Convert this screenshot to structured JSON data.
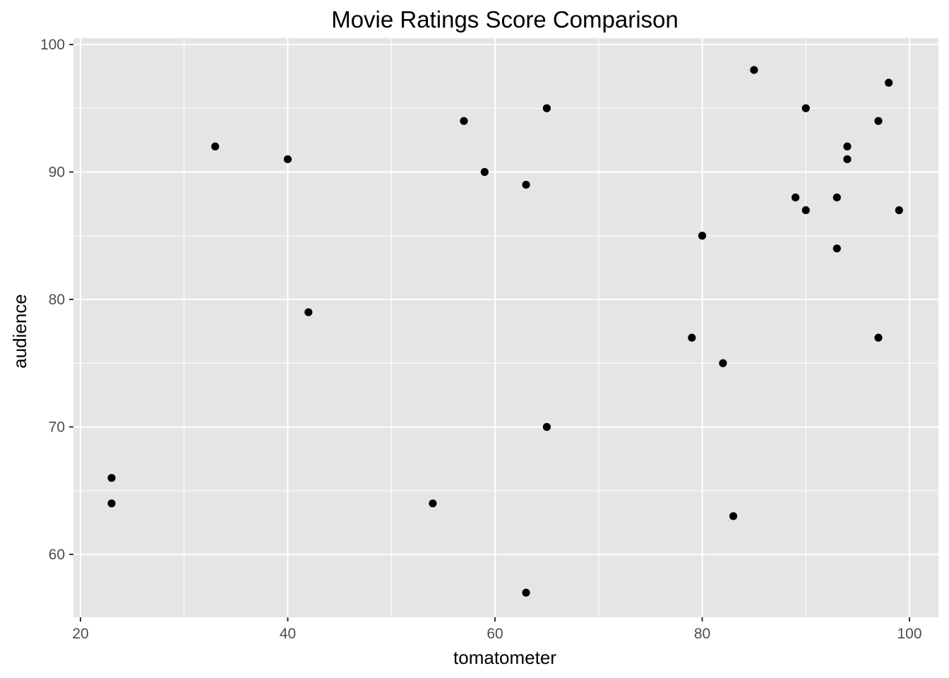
{
  "chart_data": {
    "type": "scatter",
    "title": "Movie Ratings Score Comparison",
    "xlabel": "tomatometer",
    "ylabel": "audience",
    "xlim": [
      19,
      101.5
    ],
    "ylim": [
      55,
      100
    ],
    "x_major_ticks": [
      20,
      40,
      60,
      80,
      100
    ],
    "x_minor_ticks": [
      30,
      50,
      70,
      90
    ],
    "y_major_ticks": [
      60,
      70,
      80,
      90,
      100
    ],
    "y_minor_ticks": [
      65,
      75,
      85,
      95
    ],
    "x_tick_labels": [
      "20",
      "40",
      "60",
      "80",
      "100"
    ],
    "y_tick_labels": [
      "60",
      "70",
      "80",
      "90",
      "100"
    ],
    "grid": true,
    "colors": {
      "panel": "#e5e5e5",
      "grid": "#ffffff",
      "point": "#000000",
      "tick": "#333333"
    },
    "points": [
      {
        "x": 23,
        "y": 66
      },
      {
        "x": 23,
        "y": 64
      },
      {
        "x": 33,
        "y": 92
      },
      {
        "x": 40,
        "y": 91
      },
      {
        "x": 42,
        "y": 79
      },
      {
        "x": 54,
        "y": 64
      },
      {
        "x": 57,
        "y": 94
      },
      {
        "x": 59,
        "y": 90
      },
      {
        "x": 63,
        "y": 89
      },
      {
        "x": 63,
        "y": 57
      },
      {
        "x": 65,
        "y": 95
      },
      {
        "x": 65,
        "y": 70
      },
      {
        "x": 79,
        "y": 77
      },
      {
        "x": 80,
        "y": 85
      },
      {
        "x": 82,
        "y": 75
      },
      {
        "x": 83,
        "y": 63
      },
      {
        "x": 85,
        "y": 98
      },
      {
        "x": 89,
        "y": 88
      },
      {
        "x": 90,
        "y": 95
      },
      {
        "x": 90,
        "y": 87
      },
      {
        "x": 93,
        "y": 88
      },
      {
        "x": 93,
        "y": 84
      },
      {
        "x": 94,
        "y": 92
      },
      {
        "x": 94,
        "y": 91
      },
      {
        "x": 97,
        "y": 94
      },
      {
        "x": 97,
        "y": 77
      },
      {
        "x": 98,
        "y": 97
      },
      {
        "x": 99,
        "y": 87
      }
    ]
  }
}
